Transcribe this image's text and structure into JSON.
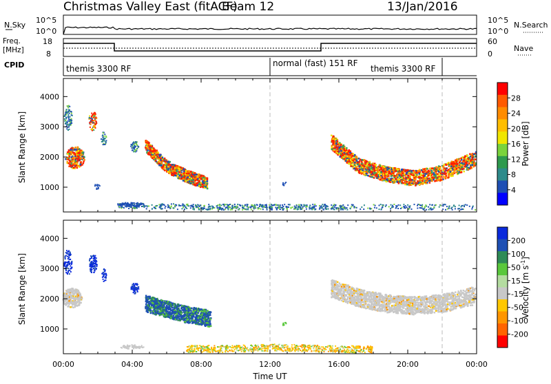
{
  "header": {
    "title": "Christmas Valley East (fitACF)",
    "beam": "Beam 12",
    "date": "13/Jan/2016"
  },
  "status_panels": {
    "nsky_label": "N.Sky",
    "nsearch_label": "N.Search",
    "freq_label_line1": "Freq.",
    "freq_label_line2": "[MHz]",
    "nave_label": "Nave",
    "cpid_label": "CPID",
    "nsky_ticks": [
      "10^5",
      "10^0"
    ],
    "nsearch_ticks": [
      "10^5",
      "10^0"
    ],
    "freq_ticks": [
      "18",
      "8"
    ],
    "nave_ticks": [
      "60",
      "0"
    ],
    "cpid_segments": [
      {
        "label": "themis 3300 RF",
        "start_hour": 0.0
      },
      {
        "label": "normal (fast) 151 RF",
        "start_hour": 12.0
      },
      {
        "label": "themis 3300 RF",
        "start_hour": 22.0
      }
    ]
  },
  "chart_data": [
    {
      "type": "heatmap",
      "name": "power",
      "ylabel": "Slant Range [km]",
      "xlabel": "Time UT",
      "x_ticks": [
        "00:00",
        "04:00",
        "08:00",
        "12:00",
        "16:00",
        "20:00",
        "00:00"
      ],
      "xlim_hours": [
        0,
        24
      ],
      "ylim": [
        180,
        4600
      ],
      "y_ticks": [
        1000,
        2000,
        3000,
        4000
      ],
      "colorbar_label": "Power [dB]",
      "colorbar_ticks": [
        28,
        24,
        20,
        16,
        12,
        8,
        4
      ],
      "colorbar_colors": [
        "#ff0000",
        "#ff5a00",
        "#ff8c00",
        "#ffbe00",
        "#f0e600",
        "#7ad33c",
        "#2e9a4e",
        "#2e8b8b",
        "#1e4fb4",
        "#0000ff"
      ]
    },
    {
      "type": "heatmap",
      "name": "velocity",
      "ylabel": "Slant Range [km]",
      "xlabel": "Time UT",
      "x_ticks": [
        "00:00",
        "04:00",
        "08:00",
        "12:00",
        "16:00",
        "20:00",
        "00:00"
      ],
      "xlim_hours": [
        0,
        24
      ],
      "ylim": [
        180,
        4600
      ],
      "y_ticks": [
        1000,
        2000,
        3000,
        4000
      ],
      "colorbar_label": "Velocity [m s-1]",
      "colorbar_label_main": "Velocity [m s",
      "colorbar_label_sup": "-1",
      "colorbar_label_end": "]",
      "colorbar_ticks": [
        "200",
        "100",
        "50",
        "15",
        "-15",
        "-50",
        "-100",
        "-200"
      ],
      "colorbar_colors": [
        "#0a2adc",
        "#1e50b4",
        "#2e8b57",
        "#5ac83c",
        "#b4dca0",
        "#c8c8c8",
        "#ffc800",
        "#ff9600",
        "#ff6400",
        "#ff0000"
      ]
    }
  ]
}
